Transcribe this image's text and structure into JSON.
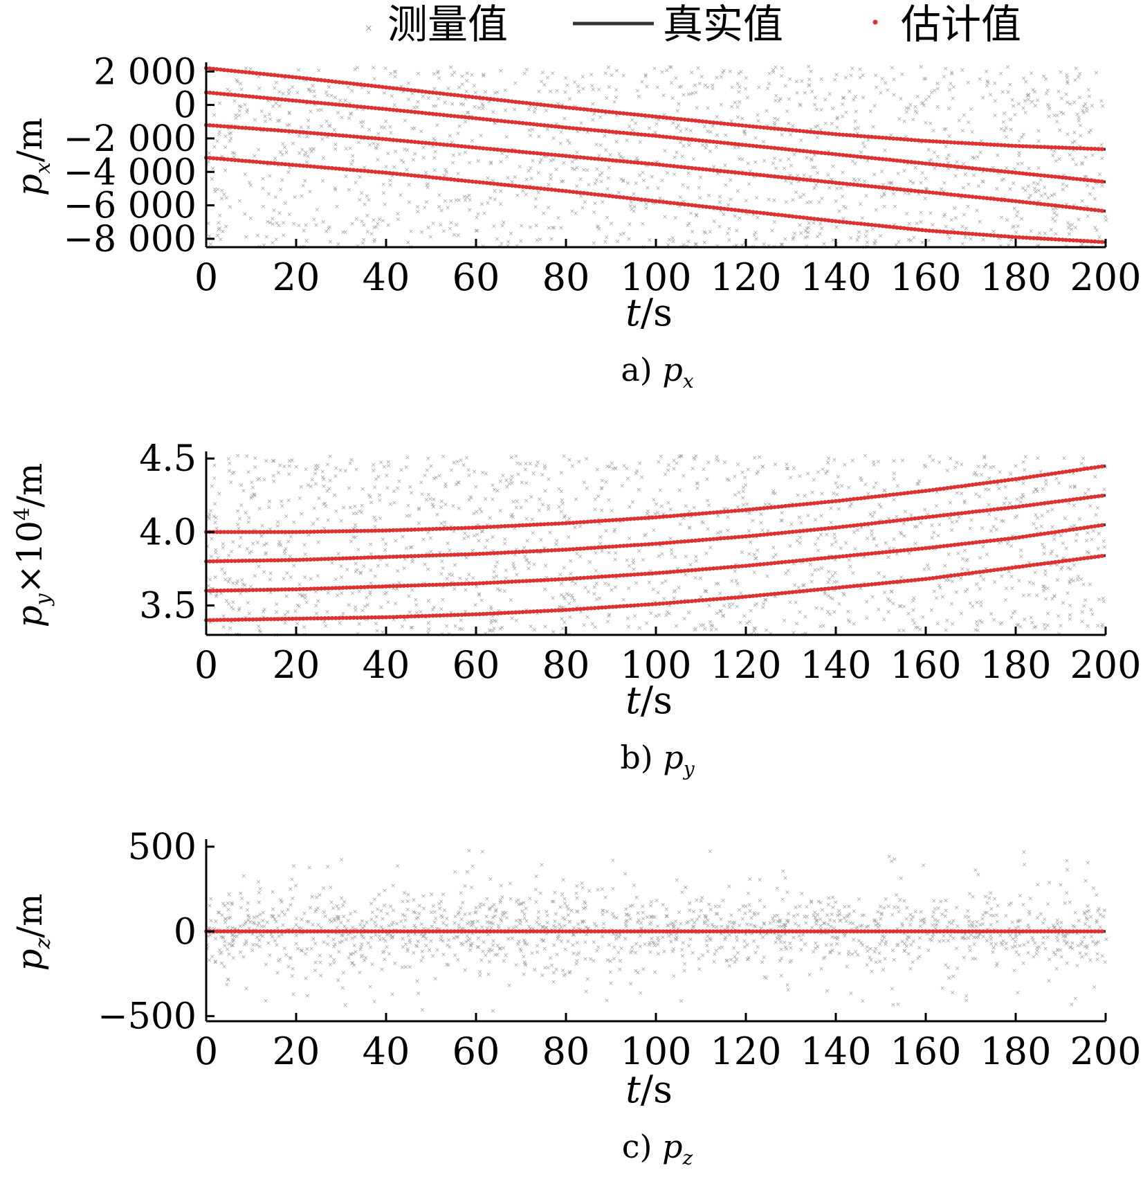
{
  "legend": {
    "measured": "测量值",
    "true": "真实值",
    "estimated": "估计值"
  },
  "colors": {
    "measured": "#a6a6a6",
    "true": "#333333",
    "estimated": "#e03030",
    "axis": "#000000"
  },
  "chart_data": [
    {
      "type": "scatter",
      "panel": "a",
      "caption": "a) p",
      "caption_sub": "x",
      "xlabel": "t/s",
      "ylabel": "p",
      "ylabel_sub": "x",
      "ylabel_suffix": "/m",
      "xlim": [
        0,
        200
      ],
      "ylim": [
        -8500,
        2300
      ],
      "xticks": [
        0,
        20,
        40,
        60,
        80,
        100,
        120,
        140,
        160,
        180,
        200
      ],
      "xtick_labels": [
        "0",
        "20",
        "40",
        "60",
        "80",
        "100",
        "120",
        "140",
        "160",
        "180",
        "200"
      ],
      "yticks": [
        2000,
        0,
        -2000,
        -4000,
        -6000,
        -8000
      ],
      "ytick_labels": [
        "2 000",
        "0",
        "−2 000",
        "−4 000",
        "−6 000",
        "−8 000"
      ],
      "grid": false,
      "legend_position": "top",
      "series": [
        {
          "x": [
            0,
            20,
            40,
            60,
            80,
            100,
            120,
            140,
            160,
            180,
            200
          ],
          "values": [
            2200,
            1650,
            1050,
            450,
            -150,
            -700,
            -1250,
            -1750,
            -2150,
            -2450,
            -2650
          ]
        },
        {
          "x": [
            0,
            20,
            40,
            60,
            80,
            100,
            120,
            140,
            160,
            180,
            200
          ],
          "values": [
            750,
            250,
            -250,
            -800,
            -1350,
            -1850,
            -2400,
            -2950,
            -3500,
            -4050,
            -4600
          ]
        },
        {
          "x": [
            0,
            20,
            40,
            60,
            80,
            100,
            120,
            140,
            160,
            180,
            200
          ],
          "values": [
            -1200,
            -1600,
            -2050,
            -2550,
            -3050,
            -3550,
            -4100,
            -4650,
            -5200,
            -5750,
            -6350
          ]
        },
        {
          "x": [
            0,
            20,
            40,
            60,
            80,
            100,
            120,
            140,
            160,
            180,
            200
          ],
          "values": [
            -3150,
            -3600,
            -4050,
            -4600,
            -5150,
            -5750,
            -6350,
            -6950,
            -7500,
            -7900,
            -8200
          ]
        }
      ],
      "measurement_noise": {
        "x_range": [
          0,
          200
        ],
        "y_range": [
          -8500,
          2300
        ]
      }
    },
    {
      "type": "scatter",
      "panel": "b",
      "caption": "b) p",
      "caption_sub": "y",
      "xlabel": "t/s",
      "ylabel": "p",
      "ylabel_sub": "y",
      "ylabel_suffix": "×10",
      "ylabel_sup": "4",
      "ylabel_suffix2": "/m",
      "xlim": [
        0,
        200
      ],
      "ylim": [
        3.3,
        4.52
      ],
      "xticks": [
        0,
        20,
        40,
        60,
        80,
        100,
        120,
        140,
        160,
        180,
        200
      ],
      "xtick_labels": [
        "0",
        "20",
        "40",
        "60",
        "80",
        "100",
        "120",
        "140",
        "160",
        "180",
        "200"
      ],
      "yticks": [
        4.5,
        4.0,
        3.5
      ],
      "ytick_labels": [
        "4.5",
        "4.0",
        "3.5"
      ],
      "grid": false,
      "series": [
        {
          "x": [
            0,
            20,
            40,
            60,
            80,
            100,
            120,
            140,
            160,
            180,
            200
          ],
          "values": [
            4.0,
            4.0,
            4.01,
            4.03,
            4.06,
            4.1,
            4.15,
            4.21,
            4.28,
            4.36,
            4.45
          ]
        },
        {
          "x": [
            0,
            20,
            40,
            60,
            80,
            100,
            120,
            140,
            160,
            180,
            200
          ],
          "values": [
            3.8,
            3.81,
            3.83,
            3.85,
            3.88,
            3.92,
            3.97,
            4.03,
            4.1,
            4.17,
            4.25
          ]
        },
        {
          "x": [
            0,
            20,
            40,
            60,
            80,
            100,
            120,
            140,
            160,
            180,
            200
          ],
          "values": [
            3.6,
            3.61,
            3.63,
            3.65,
            3.68,
            3.72,
            3.77,
            3.83,
            3.89,
            3.96,
            4.05
          ]
        },
        {
          "x": [
            0,
            20,
            40,
            60,
            80,
            100,
            120,
            140,
            160,
            180,
            200
          ],
          "values": [
            3.4,
            3.41,
            3.42,
            3.44,
            3.47,
            3.51,
            3.56,
            3.62,
            3.68,
            3.76,
            3.84
          ]
        }
      ],
      "measurement_noise": {
        "x_range": [
          0,
          200
        ],
        "y_range": [
          3.3,
          4.52
        ]
      }
    },
    {
      "type": "scatter",
      "panel": "c",
      "caption": "c) p",
      "caption_sub": "z",
      "xlabel": "t/s",
      "ylabel": "p",
      "ylabel_sub": "z",
      "ylabel_suffix": "/m",
      "xlim": [
        0,
        200
      ],
      "ylim": [
        -530,
        520
      ],
      "xticks": [
        0,
        20,
        40,
        60,
        80,
        100,
        120,
        140,
        160,
        180,
        200
      ],
      "xtick_labels": [
        "0",
        "20",
        "40",
        "60",
        "80",
        "100",
        "120",
        "140",
        "160",
        "180",
        "200"
      ],
      "yticks": [
        500,
        0,
        -500
      ],
      "ytick_labels": [
        "500",
        "0",
        "−500"
      ],
      "grid": false,
      "series": [
        {
          "x": [
            0,
            200
          ],
          "values": [
            0,
            0
          ]
        }
      ],
      "measurement_noise": {
        "x_range": [
          0,
          200
        ],
        "y_range": [
          -500,
          500
        ]
      }
    }
  ]
}
